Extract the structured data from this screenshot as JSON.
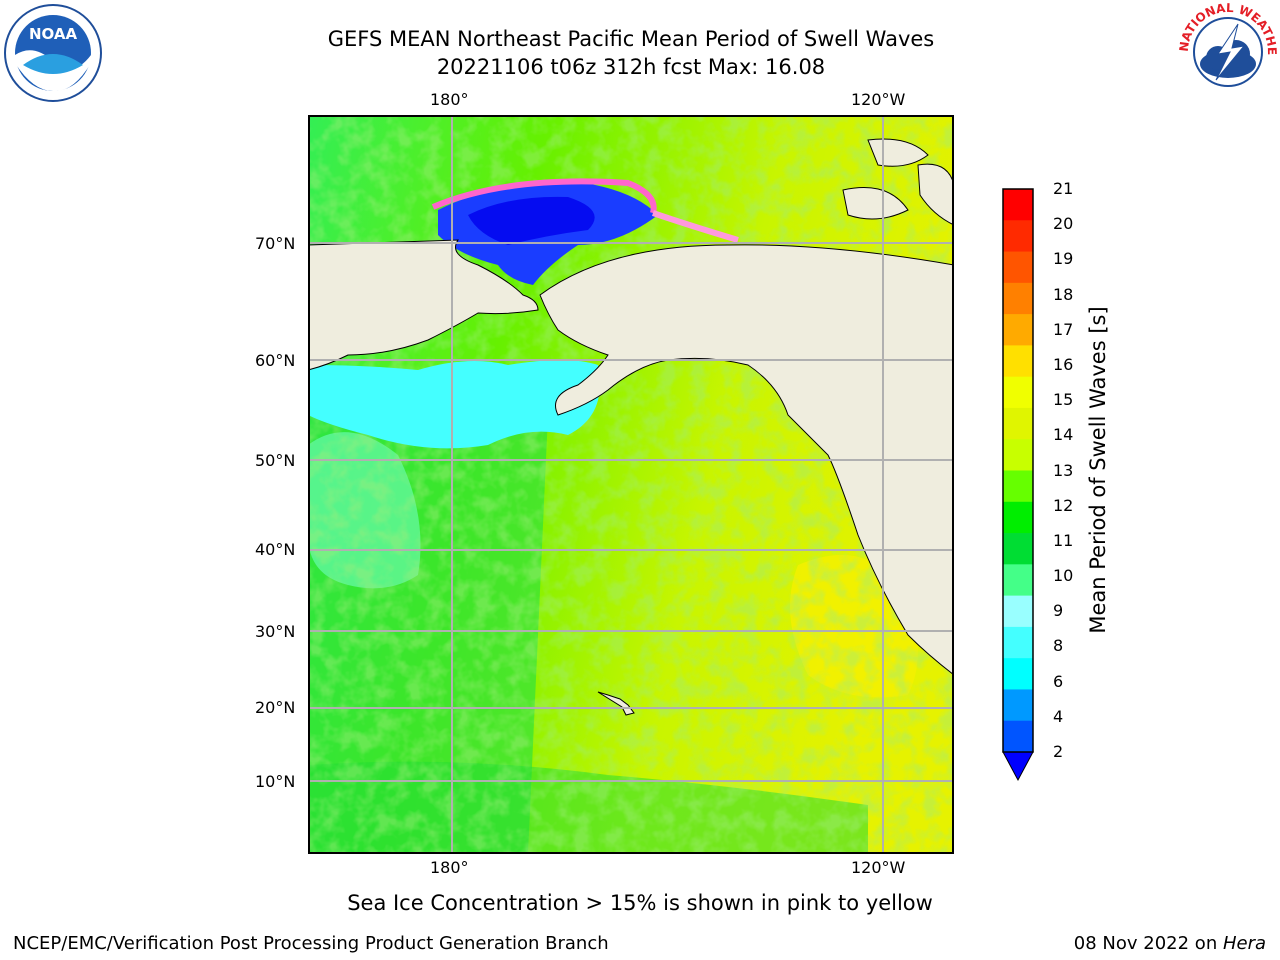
{
  "header": {
    "title_line1": "GEFS MEAN Northeast Pacific Mean Period of Swell Waves",
    "title_line2": "20221106 t06z 312h fcst   Max: 16.08"
  },
  "logos": {
    "left": {
      "icon": "noaa-logo",
      "text": "NOAA"
    },
    "right": {
      "icon": "nws-logo",
      "text": "NATIONAL WEATHER SERVICE"
    }
  },
  "map": {
    "lon_labels_top": [
      "180°",
      "120°W"
    ],
    "lon_labels_bottom": [
      "180°",
      "120°W"
    ],
    "lat_labels": [
      "70°N",
      "60°N",
      "50°N",
      "40°N",
      "30°N",
      "20°N",
      "10°N"
    ],
    "colors": {
      "land": "#efedde",
      "grid": "#b0b0b0"
    }
  },
  "colorbar": {
    "label": "Mean Period of Swell Waves [s]",
    "ticks": [
      "21",
      "20",
      "19",
      "18",
      "17",
      "16",
      "15",
      "14",
      "13",
      "12",
      "11",
      "10",
      "9",
      "8",
      "6",
      "4",
      "2"
    ],
    "colors": [
      "#ff0000",
      "#ff2a00",
      "#ff5500",
      "#ff8000",
      "#ffaa00",
      "#ffe000",
      "#f0ff00",
      "#e0f500",
      "#c8ff00",
      "#66ff00",
      "#00ee00",
      "#00dd33",
      "#44ff88",
      "#99ffff",
      "#44ffff",
      "#00ffff",
      "#0099ff",
      "#0055ff"
    ],
    "extend_color": "#0000ff"
  },
  "caption": "Sea Ice Concentration > 15% is shown in pink to yellow",
  "footer": {
    "left": "NCEP/EMC/Verification Post Processing Product Generation Branch",
    "right_date": "08 Nov 2022 on ",
    "right_host": "Hera"
  }
}
